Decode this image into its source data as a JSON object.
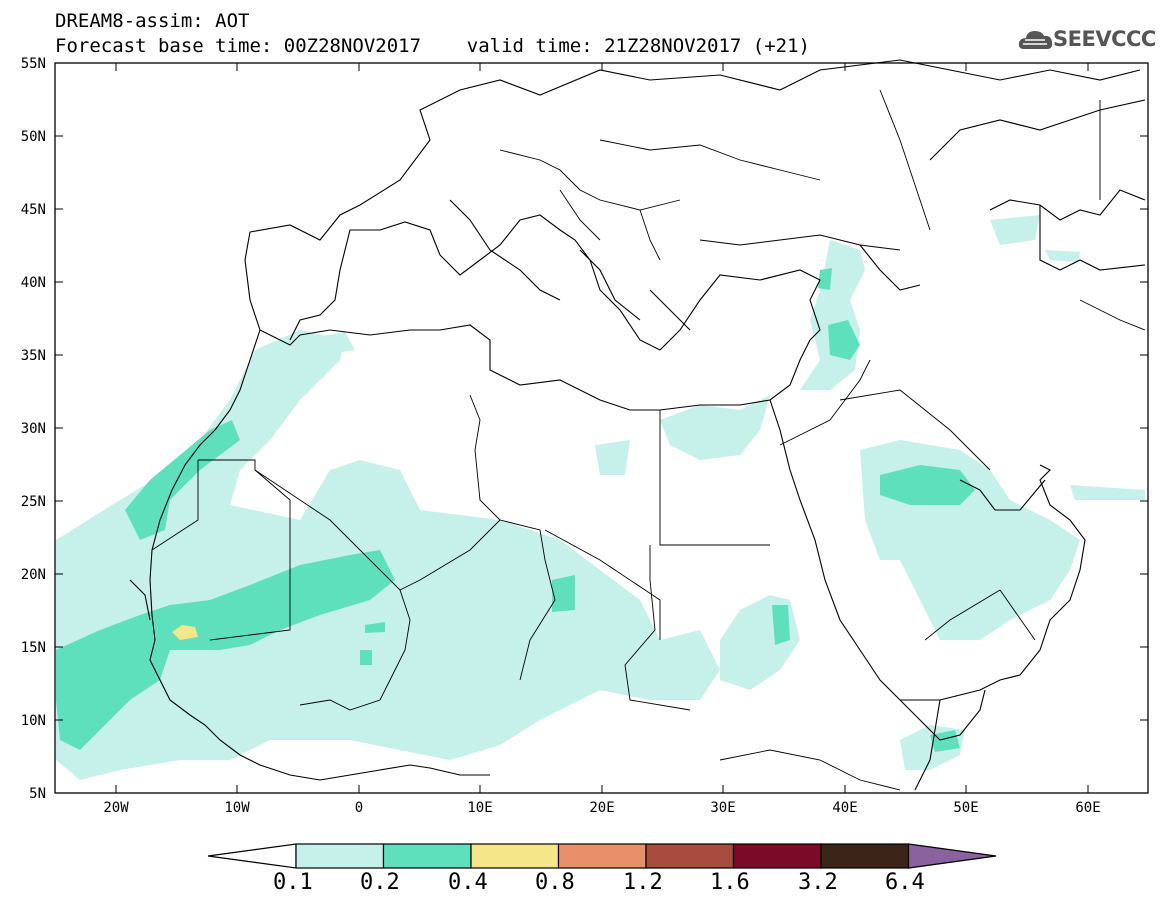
{
  "header": {
    "line1": "DREAM8-assim: AOT",
    "line2": "Forecast base time: 00Z28NOV2017    valid time: 21Z28NOV2017 (+21)"
  },
  "logo": {
    "text": "SEEVCCC",
    "icon": "cloud-icon"
  },
  "map": {
    "lat_labels": [
      "55N",
      "50N",
      "45N",
      "40N",
      "35N",
      "30N",
      "25N",
      "20N",
      "15N",
      "10N",
      "5N"
    ],
    "lon_labels": [
      "20W",
      "10W",
      "0",
      "10E",
      "20E",
      "30E",
      "40E",
      "50E",
      "60E"
    ],
    "extent": {
      "lon_min": -25,
      "lon_max": 65,
      "lat_min": 5,
      "lat_max": 55
    }
  },
  "colorbar": {
    "levels": [
      "0.1",
      "0.2",
      "0.4",
      "0.8",
      "1.2",
      "1.6",
      "3.2",
      "6.4"
    ],
    "colors": [
      "#ffffff",
      "#c6f0ea",
      "#5fe0bd",
      "#f5e68a",
      "#e8906a",
      "#a84c3e",
      "#7b0a28",
      "#3b2418",
      "#8a62a0"
    ]
  }
}
